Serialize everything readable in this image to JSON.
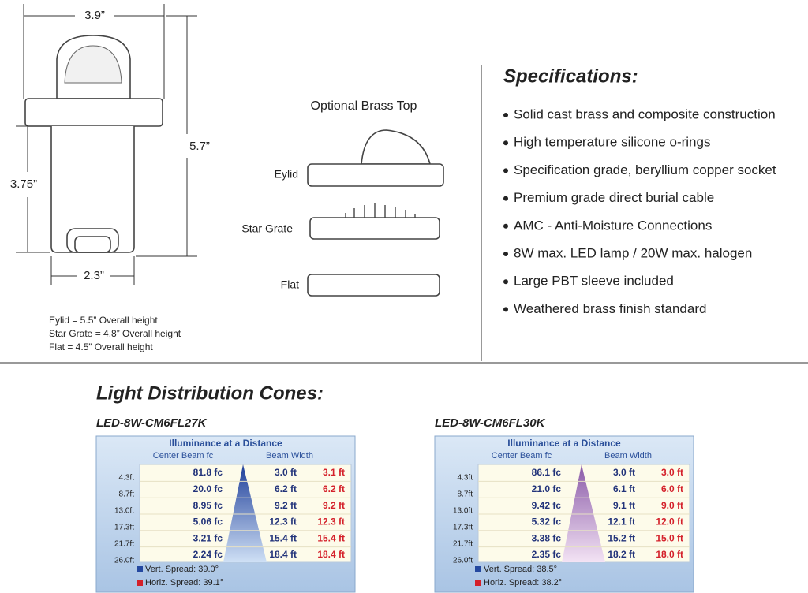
{
  "drawing": {
    "width": "3.9”",
    "height": "5.7”",
    "sleeve_height": "3.75”",
    "base_width": "2.3”",
    "notes": [
      "Eylid = 5.5” Overall height",
      "Star Grate = 4.8” Overall height",
      "Flat = 4.5” Overall height"
    ]
  },
  "optional_top": {
    "title": "Optional Brass Top",
    "options": [
      "Eylid",
      "Star Grate",
      "Flat"
    ]
  },
  "specifications": {
    "title": "Specifications:",
    "items": [
      "Solid cast brass and composite construction",
      "High temperature silicone o-rings",
      "Specification grade, beryllium copper socket",
      "Premium grade direct burial cable",
      "AMC - Anti-Moisture Connections",
      "8W max. LED lamp / 20W max. halogen",
      "Large PBT sleeve included",
      "Weathered brass finish standard"
    ]
  },
  "cones": {
    "title": "Light Distribution Cones:",
    "charts": [
      {
        "model": "LED-8W-CM6FL27K",
        "panel_title": "Illuminance at a Distance",
        "column_headers": [
          "Center Beam fc",
          "Beam Width"
        ],
        "distances": [
          "4.3ft",
          "8.7ft",
          "13.0ft",
          "17.3ft",
          "21.7ft",
          "26.0ft"
        ],
        "rows": [
          [
            "81.8 fc",
            "3.0 ft",
            "3.1 ft"
          ],
          [
            "20.0 fc",
            "6.2 ft",
            "6.2 ft"
          ],
          [
            "8.95 fc",
            "9.2 ft",
            "9.2 ft"
          ],
          [
            "5.06 fc",
            "12.3 ft",
            "12.3 ft"
          ],
          [
            "3.21 fc",
            "15.4 ft",
            "15.4 ft"
          ],
          [
            "2.24 fc",
            "18.4 ft",
            "18.4 ft"
          ]
        ],
        "legend": [
          "Vert. Spread: 39.0°",
          "Horiz. Spread: 39.1°"
        ]
      },
      {
        "model": "LED-8W-CM6FL30K",
        "panel_title": "Illuminance at a Distance",
        "column_headers": [
          "Center Beam fc",
          "Beam Width"
        ],
        "distances": [
          "4.3ft",
          "8.7ft",
          "13.0ft",
          "17.3ft",
          "21.7ft",
          "26.0ft"
        ],
        "rows": [
          [
            "86.1 fc",
            "3.0 ft",
            "3.0 ft"
          ],
          [
            "21.0 fc",
            "6.1 ft",
            "6.0 ft"
          ],
          [
            "9.42 fc",
            "9.1 ft",
            "9.0 ft"
          ],
          [
            "5.32 fc",
            "12.1 ft",
            "12.0 ft"
          ],
          [
            "3.38 fc",
            "15.2 ft",
            "15.0 ft"
          ],
          [
            "2.35 fc",
            "18.2 ft",
            "18.0 ft"
          ]
        ],
        "legend": [
          "Vert. Spread: 38.5°",
          "Horiz. Spread: 38.2°"
        ]
      }
    ]
  }
}
